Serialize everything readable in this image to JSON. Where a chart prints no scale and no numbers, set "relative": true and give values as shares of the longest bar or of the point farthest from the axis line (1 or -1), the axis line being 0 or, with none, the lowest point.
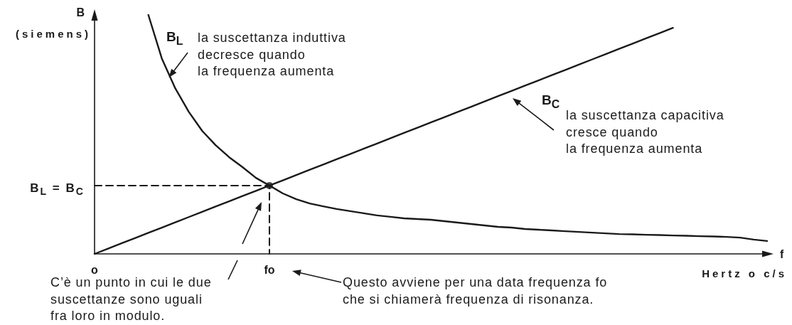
{
  "chart_data": {
    "type": "line",
    "relative": true,
    "xlabel": "f",
    "ylabel": "B",
    "categories": [
      "o",
      null,
      null,
      null,
      null,
      null,
      null,
      null,
      null,
      null,
      null,
      null,
      null,
      "fo",
      null,
      null,
      null,
      null,
      null,
      null,
      null,
      null,
      null,
      null,
      null,
      null,
      null,
      null,
      null,
      null,
      null,
      null,
      null,
      null,
      null,
      null,
      null,
      null,
      null,
      null,
      null,
      null,
      null,
      null,
      null,
      null,
      null,
      null,
      null,
      null,
      null
    ],
    "series": [
      {
        "name": "B$_{L}$",
        "color": "#1a1a1a",
        "values": [
          null,
          null,
          null,
          null,
          1,
          0.818,
          0.693,
          0.595,
          0.515,
          0.455,
          0.405,
          0.363,
          0.318,
          0.286,
          0.253,
          0.229,
          0.211,
          0.199,
          0.188,
          0.179,
          0.17,
          0.161,
          0.155,
          0.149,
          0.146,
          0.143,
          0.137,
          0.131,
          0.125,
          0.119,
          0.113,
          0.11,
          0.104,
          0.101,
          0.098,
          0.095,
          0.092,
          0.089,
          0.086,
          0.083,
          0.082,
          0.08,
          0.079,
          0.077,
          0.076,
          0.074,
          0.073,
          0.071,
          0.068,
          0.06,
          0.054
        ]
      },
      {
        "name": "B$_{C}$",
        "color": "#1a1a1a",
        "values": [
          0,
          0.022,
          0.044,
          0.066,
          0.088,
          0.11,
          0.132,
          0.154,
          0.176,
          0.198,
          0.22,
          0.242,
          0.264,
          0.286,
          0.308,
          0.33,
          0.352,
          0.374,
          0.396,
          0.418,
          0.44,
          0.462,
          0.484,
          0.506,
          0.528,
          0.55,
          0.572,
          0.594,
          0.616,
          0.638,
          0.66,
          0.682,
          0.704,
          0.726,
          0.748,
          0.77,
          0.792,
          0.814,
          0.836,
          0.858,
          0.88,
          0.902,
          0.924,
          0.946,
          null,
          null,
          null,
          null,
          null,
          null,
          null
        ]
      },
      {
        "type": "line",
        "line_style": "dashed",
        "color": "#1a1a1a",
        "x": [
          "o",
          "fo",
          "fo"
        ],
        "values": [
          0.286,
          0.286,
          0
        ]
      },
      {
        "type": "scatter",
        "marker": "circle",
        "color": "#1a1a1a",
        "x": [
          "fo"
        ],
        "values": [
          0.286
        ]
      }
    ],
    "annotations": [
      "(siemens)",
      "la suscettanza induttiva\ndecresce quando\nla frequenza aumenta",
      "la suscettanza capacitiva\ncresce quando\nla frequenza aumenta",
      "B$_{L}$ = B$_{C}$",
      "C’è un punto in cui le due\nsuscettanze sono uguali\nfra loro in modulo.",
      "Questo avviene per una data frequenza fo\nche si chiamerà frequenza di risonanza.",
      "Hertz o c/s"
    ]
  }
}
